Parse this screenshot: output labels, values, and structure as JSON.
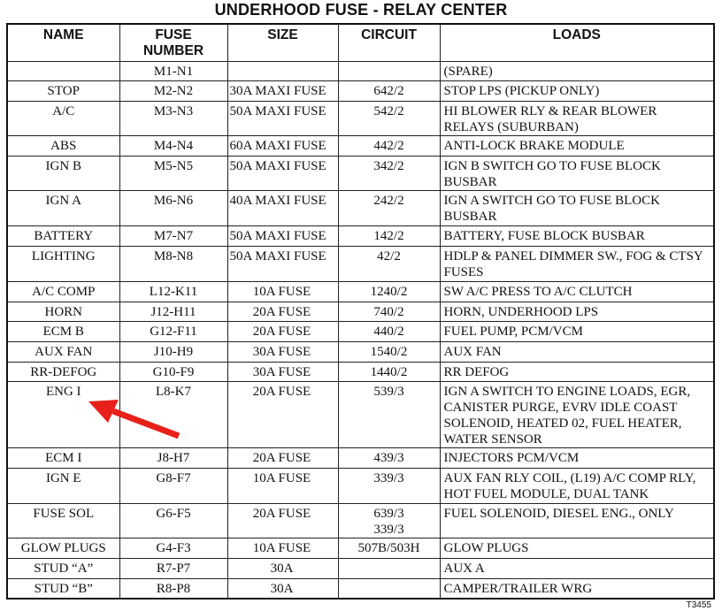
{
  "title": "UNDERHOOD FUSE - RELAY CENTER",
  "columns": [
    "NAME",
    "FUSE NUMBER",
    "SIZE",
    "CIRCUIT",
    "LOADS"
  ],
  "rows": [
    {
      "name": "",
      "fuse": "M1-N1",
      "size": "",
      "circuit": "",
      "loads": "(SPARE)"
    },
    {
      "name": "STOP",
      "fuse": "M2-N2",
      "size": "30A MAXI FUSE",
      "circuit": "642/2",
      "loads": "STOP LPS (PICKUP ONLY)"
    },
    {
      "name": "A/C",
      "fuse": "M3-N3",
      "size": "50A MAXI FUSE",
      "circuit": "542/2",
      "loads": "HI BLOWER RLY & REAR BLOWER RELAYS (SUBURBAN)"
    },
    {
      "name": "ABS",
      "fuse": "M4-N4",
      "size": "60A MAXI FUSE",
      "circuit": "442/2",
      "loads": "ANTI-LOCK BRAKE MODULE"
    },
    {
      "name": "IGN B",
      "fuse": "M5-N5",
      "size": "50A MAXI FUSE",
      "circuit": "342/2",
      "loads": "IGN B SWITCH GO TO FUSE BLOCK BUSBAR"
    },
    {
      "name": "IGN A",
      "fuse": "M6-N6",
      "size": "40A MAXI FUSE",
      "circuit": "242/2",
      "loads": "IGN A SWITCH GO TO FUSE BLOCK BUSBAR"
    },
    {
      "name": "BATTERY",
      "fuse": "M7-N7",
      "size": "50A MAXI FUSE",
      "circuit": "142/2",
      "loads": "BATTERY, FUSE BLOCK BUSBAR"
    },
    {
      "name": "LIGHTING",
      "fuse": "M8-N8",
      "size": "50A MAXI FUSE",
      "circuit": "42/2",
      "loads": "HDLP & PANEL DIMMER SW., FOG & CTSY FUSES"
    },
    {
      "name": "A/C COMP",
      "fuse": "L12-K11",
      "size": "10A FUSE",
      "circuit": "1240/2",
      "loads": "SW A/C PRESS TO A/C CLUTCH"
    },
    {
      "name": "HORN",
      "fuse": "J12-H11",
      "size": "20A FUSE",
      "circuit": "740/2",
      "loads": "HORN, UNDERHOOD LPS"
    },
    {
      "name": "ECM B",
      "fuse": "G12-F11",
      "size": "20A FUSE",
      "circuit": "440/2",
      "loads": "FUEL PUMP, PCM/VCM"
    },
    {
      "name": "AUX FAN",
      "fuse": "J10-H9",
      "size": "30A FUSE",
      "circuit": "1540/2",
      "loads": "AUX FAN"
    },
    {
      "name": "RR-DEFOG",
      "fuse": "G10-F9",
      "size": "30A FUSE",
      "circuit": "1440/2",
      "loads": "RR DEFOG"
    },
    {
      "name": "ENG I",
      "fuse": "L8-K7",
      "size": "20A FUSE",
      "circuit": "539/3",
      "loads": "IGN A SWITCH TO ENGINE LOADS, EGR, CANISTER PURGE, EVRV IDLE COAST SOLENOID, HEATED 02, FUEL HEATER, WATER SENSOR"
    },
    {
      "name": "ECM I",
      "fuse": "J8-H7",
      "size": "20A FUSE",
      "circuit": "439/3",
      "loads": "INJECTORS PCM/VCM"
    },
    {
      "name": "IGN E",
      "fuse": "G8-F7",
      "size": "10A FUSE",
      "circuit": "339/3",
      "loads": "AUX FAN RLY COIL, (L19) A/C COMP RLY, HOT FUEL MODULE, DUAL TANK"
    },
    {
      "name": "FUSE SOL",
      "fuse": "G6-F5",
      "size": "20A FUSE",
      "circuit": "639/3\n339/3",
      "loads": "FUEL SOLENOID, DIESEL ENG., ONLY"
    },
    {
      "name": "GLOW PLUGS",
      "fuse": "G4-F3",
      "size": "10A FUSE",
      "circuit": "507B/503H",
      "loads": "GLOW PLUGS"
    },
    {
      "name": "STUD “A”",
      "fuse": "R7-P7",
      "size": "30A",
      "circuit": "",
      "loads": "AUX A"
    },
    {
      "name": "STUD “B”",
      "fuse": "R8-P8",
      "size": "30A",
      "circuit": "",
      "loads": "CAMPER/TRAILER WRG"
    }
  ],
  "figure_code": "T3455",
  "annotation": {
    "type": "red-arrow",
    "points_to": "ENG I",
    "color": "#e8201a"
  }
}
